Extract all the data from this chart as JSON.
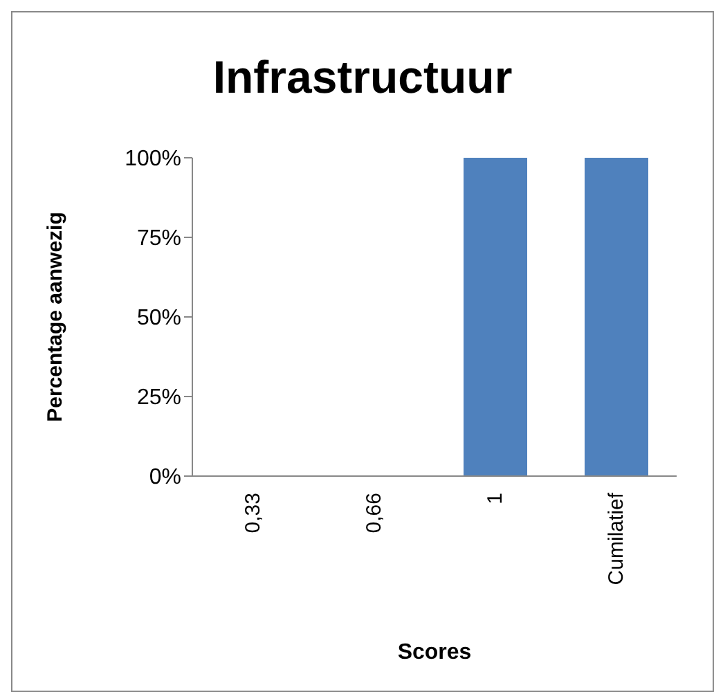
{
  "chart_data": {
    "type": "bar",
    "title": "Infrastructuur",
    "xlabel": "Scores",
    "ylabel": "Percentage aanwezig",
    "categories": [
      "0,33",
      "0,66",
      "1",
      "Cumilatief"
    ],
    "values": [
      0,
      0,
      100,
      100
    ],
    "color": "#4f81bd",
    "ylim": [
      0,
      100
    ],
    "yticks": [
      {
        "value": 0,
        "label": "0%"
      },
      {
        "value": 25,
        "label": "25%"
      },
      {
        "value": 50,
        "label": "50%"
      },
      {
        "value": 75,
        "label": "75%"
      },
      {
        "value": 100,
        "label": "100%"
      }
    ],
    "grid": false,
    "legend": false
  }
}
